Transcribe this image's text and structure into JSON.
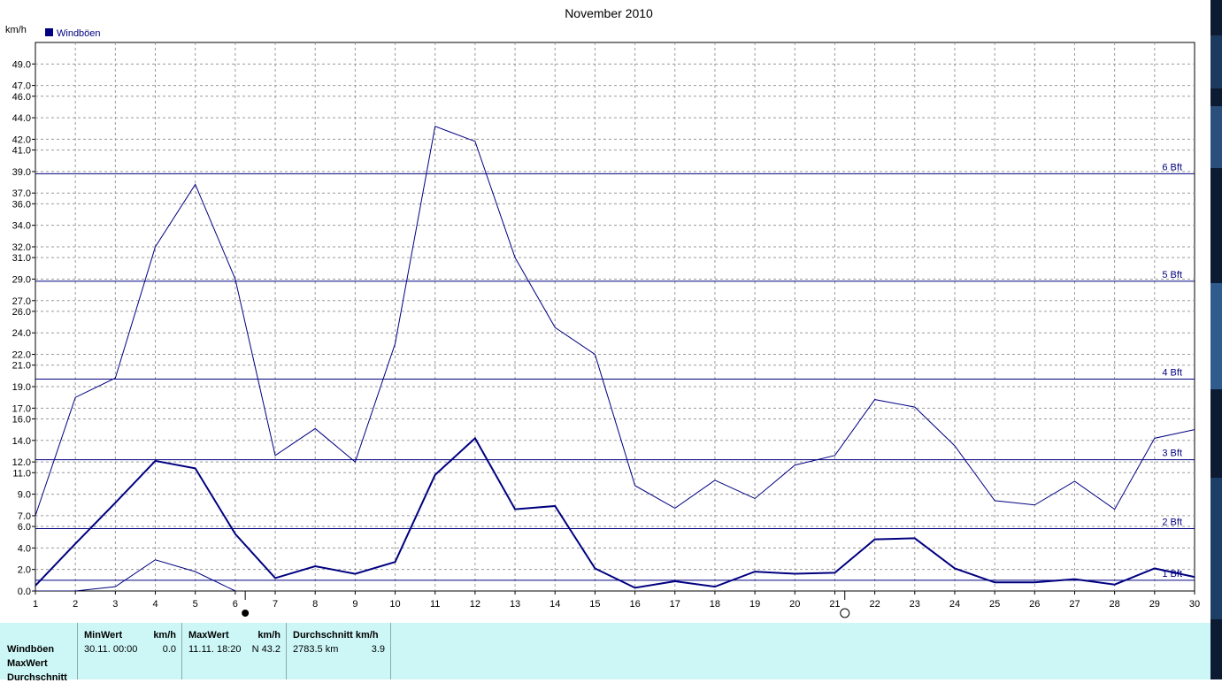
{
  "title": "November 2010",
  "unit": "km/h",
  "legend": {
    "label": "Windböen",
    "color": "#000080"
  },
  "chart_data": {
    "type": "line",
    "title": "November 2010",
    "ylabel": "km/h",
    "xlim": [
      1,
      30
    ],
    "ylim": [
      0,
      51
    ],
    "grid": true,
    "legend_position": "top-left",
    "x_ticks": [
      1,
      2,
      3,
      4,
      5,
      6,
      7,
      8,
      9,
      10,
      11,
      12,
      13,
      14,
      15,
      16,
      17,
      18,
      19,
      20,
      21,
      22,
      23,
      24,
      25,
      26,
      27,
      28,
      29,
      30
    ],
    "y_ticks": [
      "0.0",
      "2.0",
      "4.0",
      "6.0",
      "7.0",
      "9.0",
      "11.0",
      "12.0",
      "14.0",
      "16.0",
      "17.0",
      "19.0",
      "21.0",
      "22.0",
      "24.0",
      "26.0",
      "27.0",
      "29.0",
      "31.0",
      "32.0",
      "34.0",
      "36.0",
      "37.0",
      "39.0",
      "41.0",
      "42.0",
      "44.0",
      "46.0",
      "47.0",
      "49.0"
    ],
    "reference_lines": [
      {
        "label": "1 Bft",
        "value": 1.0
      },
      {
        "label": "2 Bft",
        "value": 5.8
      },
      {
        "label": "3 Bft",
        "value": 12.2
      },
      {
        "label": "4 Bft",
        "value": 19.7
      },
      {
        "label": "5 Bft",
        "value": 28.8
      },
      {
        "label": "6 Bft",
        "value": 38.8
      }
    ],
    "series": [
      {
        "name": "Max",
        "width": 1,
        "x": [
          1,
          2,
          3,
          4,
          5,
          6,
          7,
          8,
          9,
          10,
          11,
          12,
          13,
          14,
          15,
          16,
          17,
          18,
          19,
          20,
          21,
          22,
          23,
          24,
          25,
          26,
          27,
          28,
          29,
          30
        ],
        "values": [
          7.0,
          18.0,
          19.8,
          32.0,
          37.8,
          29.0,
          12.6,
          15.1,
          12.0,
          23.0,
          43.2,
          41.8,
          31.0,
          24.5,
          22.0,
          9.8,
          7.7,
          10.3,
          8.6,
          11.7,
          12.6,
          17.8,
          17.1,
          13.5,
          8.4,
          8.0,
          10.2,
          7.6,
          14.2,
          15.0
        ]
      },
      {
        "name": "Durchschnitt",
        "width": 2,
        "x": [
          1,
          2,
          3,
          4,
          5,
          6,
          7,
          8,
          9,
          10,
          11,
          12,
          13,
          14,
          15,
          16,
          17,
          18,
          19,
          20,
          21,
          22,
          23,
          24,
          25,
          26,
          27,
          28,
          29,
          30
        ],
        "values": [
          0.5,
          4.4,
          8.2,
          12.1,
          11.4,
          5.3,
          1.2,
          2.3,
          1.6,
          2.7,
          10.8,
          14.2,
          7.6,
          7.9,
          2.1,
          0.3,
          0.9,
          0.4,
          1.8,
          1.6,
          1.7,
          4.8,
          4.9,
          2.1,
          0.8,
          0.8,
          1.1,
          0.6,
          2.1,
          1.3
        ]
      },
      {
        "name": "Min",
        "width": 1,
        "x": [
          1,
          2,
          3,
          4,
          5,
          6
        ],
        "values": [
          0.0,
          0.0,
          0.4,
          2.9,
          1.8,
          0.0
        ]
      }
    ],
    "moon_markers": [
      {
        "day": 6,
        "phase": "new-moon"
      },
      {
        "day": 21,
        "phase": "full-moon"
      }
    ]
  },
  "stats": {
    "row_labels": [
      "Windböen",
      "MaxWert",
      "Durchschnitt"
    ],
    "min": {
      "header": "MinWert",
      "unit": "km/h",
      "date": "30.11.  00:00",
      "value": "0.0"
    },
    "max": {
      "header": "MaxWert",
      "unit": "km/h",
      "date": "11.11.  18:20",
      "value": "N 43.2"
    },
    "avg": {
      "header": "Durchschnitt km/h",
      "distance": "2783.5 km",
      "value": "3.9"
    }
  }
}
